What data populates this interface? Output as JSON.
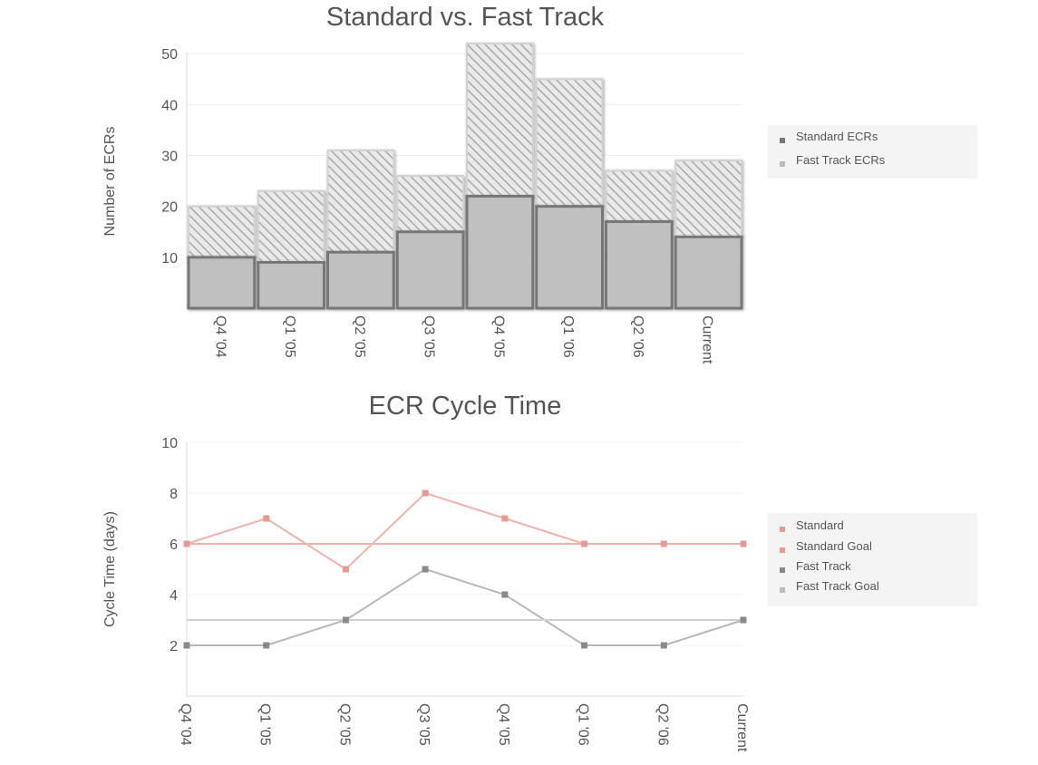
{
  "chart_data": [
    {
      "type": "bar",
      "stacked": true,
      "title": "Standard vs. Fast Track",
      "ylabel": "Number of ECRs",
      "xlabel": "",
      "categories": [
        "Q4 '04",
        "Q1 '05",
        "Q2 '05",
        "Q3 '05",
        "Q4 '05",
        "Q1 '06",
        "Q2 '06",
        "Current"
      ],
      "series": [
        {
          "name": "Standard ECRs",
          "values": [
            10,
            9,
            11,
            15,
            22,
            20,
            17,
            14
          ]
        },
        {
          "name": "Fast Track ECRs",
          "values": [
            10,
            14,
            20,
            11,
            30,
            25,
            10,
            15
          ]
        }
      ],
      "ylim": [
        0,
        52
      ],
      "yticks": [
        10,
        20,
        30,
        40,
        50
      ],
      "grid": true,
      "legend": "right",
      "colors": {
        "standard_fill": "#c0c0c0",
        "standard_stroke": "#777777",
        "fast_hatch": "#bdbdbd"
      }
    },
    {
      "type": "line",
      "title": "ECR Cycle Time",
      "ylabel": "Cycle Time (days)",
      "xlabel": "",
      "categories": [
        "Q4 '04",
        "Q1 '05",
        "Q2 '05",
        "Q3 '05",
        "Q4 '05",
        "Q1 '06",
        "Q2 '06",
        "Current"
      ],
      "series": [
        {
          "name": "Standard",
          "values": [
            6,
            7,
            5,
            8,
            7,
            6,
            6,
            6
          ],
          "color": "#f0b3ab"
        },
        {
          "name": "Standard Goal",
          "values": [
            6,
            6,
            6,
            6,
            6,
            6,
            6,
            6
          ],
          "color": "#f0b3ab"
        },
        {
          "name": "Fast Track",
          "values": [
            2,
            2,
            3,
            5,
            4,
            2,
            2,
            3
          ],
          "color": "#b8b8b8"
        },
        {
          "name": "Fast Track Goal",
          "values": [
            3,
            3,
            3,
            3,
            3,
            3,
            3,
            3
          ],
          "color": "#d0d0d0"
        }
      ],
      "ylim": [
        0,
        10
      ],
      "yticks": [
        2,
        4,
        6,
        8,
        10
      ],
      "grid": true,
      "legend": "right"
    }
  ]
}
